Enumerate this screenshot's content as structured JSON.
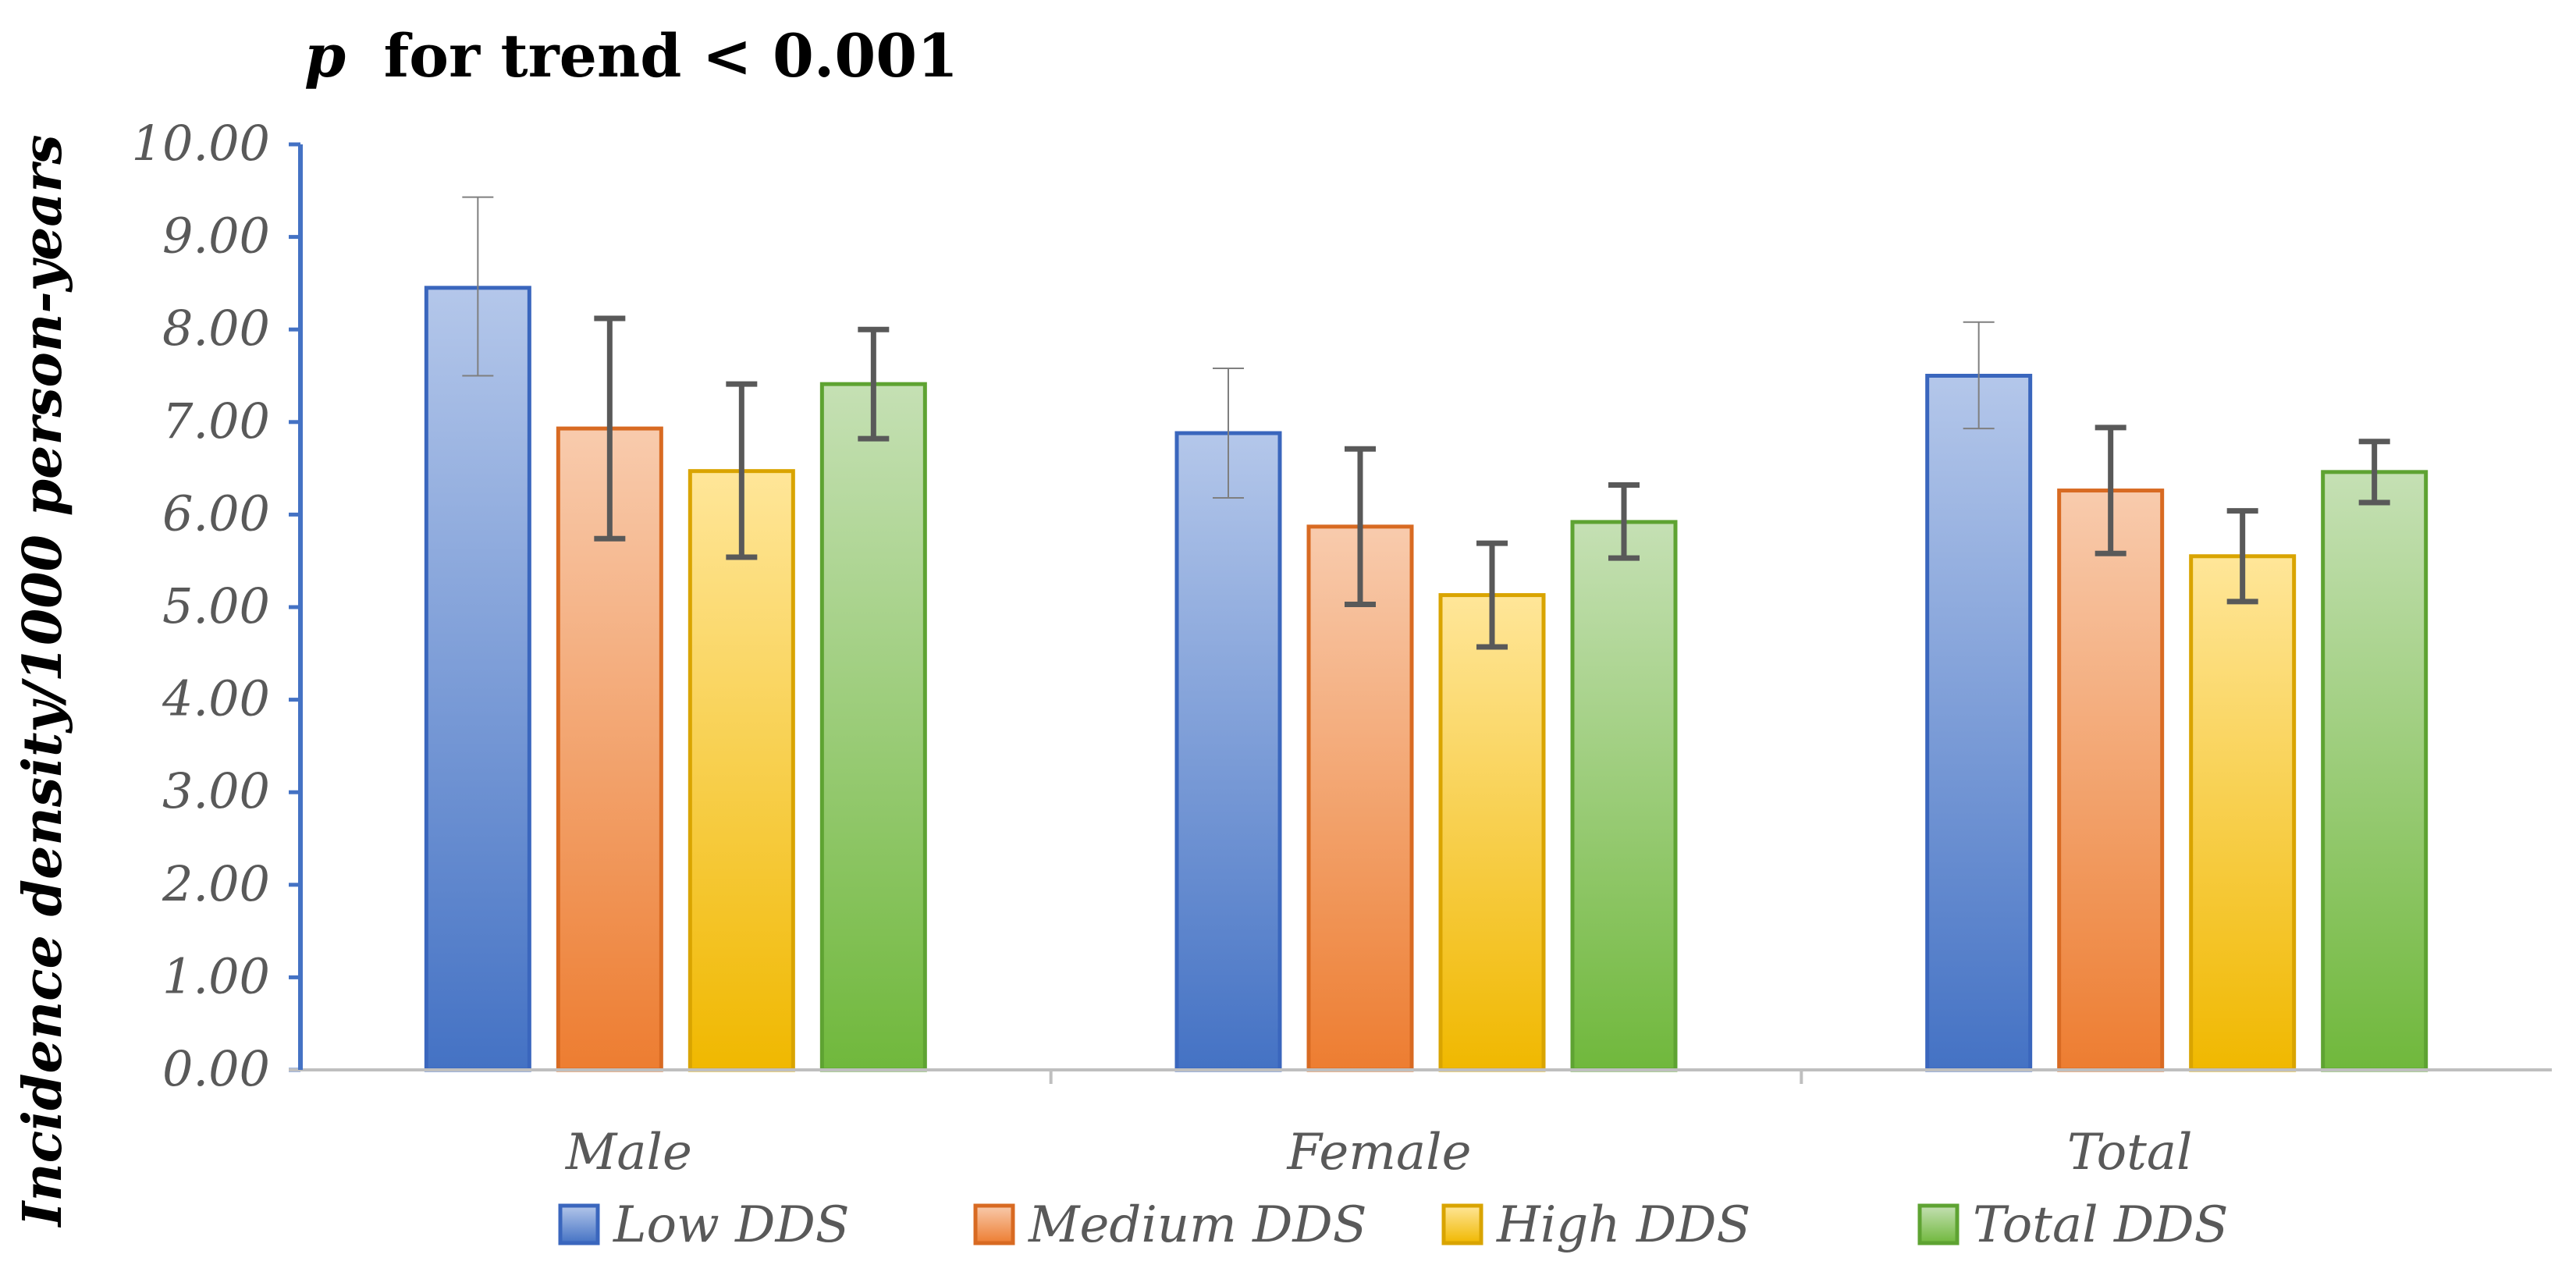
{
  "chart_data": {
    "type": "bar",
    "title": {
      "p_symbol": "p",
      "text": "for trend < 0.001"
    },
    "xlabel": "",
    "ylabel": "Incidence density/1000 person-years",
    "ylim": [
      0,
      10
    ],
    "y_ticks": [
      "0.00",
      "1.00",
      "2.00",
      "3.00",
      "4.00",
      "5.00",
      "6.00",
      "7.00",
      "8.00",
      "9.00",
      "10.00"
    ],
    "categories": [
      "Male",
      "Female",
      "Total"
    ],
    "series": [
      {
        "name": "Low DDS",
        "color_top": "#b4c7ea",
        "color_bottom": "#4472c4",
        "stroke": "#3a66bd",
        "values": [
          8.45,
          6.88,
          7.5
        ],
        "err_low": [
          7.5,
          6.18,
          6.93
        ],
        "err_high": [
          9.43,
          7.58,
          8.08
        ]
      },
      {
        "name": "Medium DDS",
        "color_top": "#f8cbad",
        "color_bottom": "#ed7d31",
        "stroke": "#d86a22",
        "values": [
          6.93,
          5.87,
          6.26
        ],
        "err_low": [
          5.74,
          5.03,
          5.58
        ],
        "err_high": [
          8.12,
          6.71,
          6.94
        ]
      },
      {
        "name": "High DDS",
        "color_top": "#ffe699",
        "color_bottom": "#f0b800",
        "stroke": "#d9a400",
        "values": [
          6.47,
          5.13,
          5.55
        ],
        "err_low": [
          5.54,
          4.57,
          5.06
        ],
        "err_high": [
          7.41,
          5.69,
          6.04
        ]
      },
      {
        "name": "Total DDS",
        "color_top": "#c5e0b4",
        "color_bottom": "#70b83c",
        "stroke": "#5ea332",
        "values": [
          7.41,
          5.92,
          6.46
        ],
        "err_low": [
          6.82,
          5.53,
          6.13
        ],
        "err_high": [
          8.0,
          6.32,
          6.79
        ]
      }
    ],
    "legend_position": "bottom",
    "grid": false
  },
  "colors": {
    "axis": "#4472c4",
    "baseline": "#bfbfbf",
    "tick_text": "#595959",
    "error_bar": "#595959"
  }
}
